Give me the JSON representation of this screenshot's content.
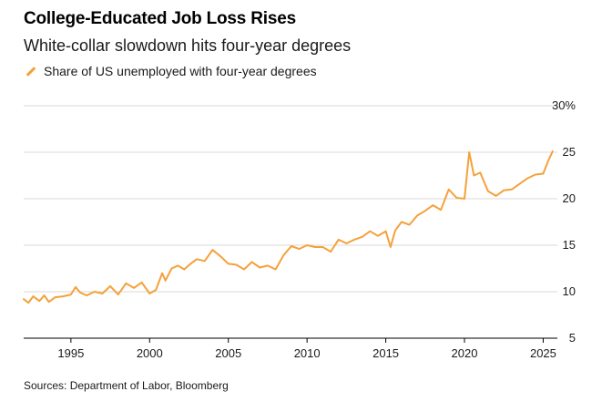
{
  "header": {
    "title": "College-Educated Job Loss Rises",
    "subtitle": "White-collar slowdown hits four-year degrees"
  },
  "footer": {
    "source": "Sources: Department of Labor, Bloomberg"
  },
  "colors": {
    "line": "#f5a13a",
    "grid": "#d9d9d9",
    "axis": "#000000"
  },
  "chart_data": {
    "type": "line",
    "title": "College-Educated Job Loss Rises",
    "subtitle": "White-collar slowdown hits four-year degrees",
    "xlabel": "",
    "ylabel": "",
    "xlim": [
      1992,
      2025.9
    ],
    "ylim": [
      5,
      30
    ],
    "x_ticks": [
      1995,
      2000,
      2005,
      2010,
      2015,
      2020,
      2025
    ],
    "y_ticks": [
      5,
      10,
      15,
      20,
      25,
      30
    ],
    "y_tick_labels": [
      "5",
      "10",
      "15",
      "20",
      "25",
      "30%"
    ],
    "grid": true,
    "legend": "top-left",
    "series": [
      {
        "name": "Share of US unemployed with four-year degrees",
        "x": [
          1992.0,
          1992.3,
          1992.6,
          1993.0,
          1993.3,
          1993.6,
          1994.0,
          1994.5,
          1995.0,
          1995.3,
          1995.6,
          1996.0,
          1996.5,
          1997.0,
          1997.5,
          1998.0,
          1998.5,
          1999.0,
          1999.5,
          2000.0,
          2000.4,
          2000.8,
          2001.0,
          2001.4,
          2001.8,
          2002.2,
          2002.6,
          2003.0,
          2003.5,
          2004.0,
          2004.5,
          2005.0,
          2005.5,
          2006.0,
          2006.5,
          2007.0,
          2007.5,
          2008.0,
          2008.5,
          2009.0,
          2009.5,
          2010.0,
          2010.5,
          2011.0,
          2011.5,
          2012.0,
          2012.5,
          2013.0,
          2013.5,
          2014.0,
          2014.5,
          2015.0,
          2015.3,
          2015.6,
          2016.0,
          2016.5,
          2017.0,
          2017.5,
          2018.0,
          2018.5,
          2019.0,
          2019.5,
          2020.0,
          2020.3,
          2020.6,
          2021.0,
          2021.5,
          2022.0,
          2022.5,
          2023.0,
          2023.5,
          2024.0,
          2024.5,
          2025.0,
          2025.3,
          2025.6
        ],
        "values": [
          9.2,
          8.8,
          9.5,
          9.0,
          9.6,
          8.9,
          9.4,
          9.5,
          9.7,
          10.5,
          9.9,
          9.6,
          10.0,
          9.8,
          10.6,
          9.7,
          10.9,
          10.4,
          11.0,
          9.8,
          10.2,
          12.0,
          11.2,
          12.5,
          12.8,
          12.4,
          13.0,
          13.5,
          13.3,
          14.5,
          13.8,
          13.0,
          12.9,
          12.4,
          13.2,
          12.6,
          12.8,
          12.4,
          13.9,
          14.9,
          14.6,
          15.0,
          14.8,
          14.8,
          14.3,
          15.6,
          15.2,
          15.6,
          15.9,
          16.5,
          16.0,
          16.5,
          14.8,
          16.6,
          17.5,
          17.2,
          18.2,
          18.7,
          19.3,
          18.8,
          21.0,
          20.1,
          20.0,
          25.0,
          22.5,
          22.8,
          20.8,
          20.3,
          20.9,
          21.0,
          21.6,
          22.2,
          22.6,
          22.7,
          24.0,
          25.1
        ]
      }
    ]
  }
}
